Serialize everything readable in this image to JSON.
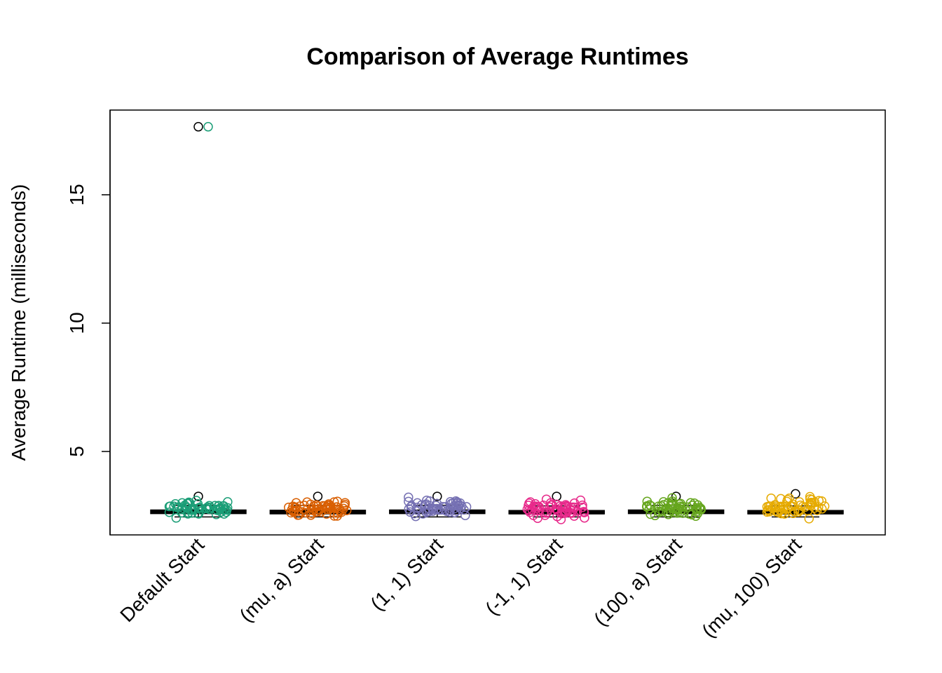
{
  "chart_data": {
    "type": "box",
    "title": "Comparison of Average Runtimes",
    "xlabel": "",
    "ylabel": "Average Runtime (milliseconds)",
    "ylim": [
      1.75,
      18.3
    ],
    "yticks": [
      5,
      10,
      15
    ],
    "grid": false,
    "categories": [
      "Default Start",
      "(mu, a) Start",
      "(1, 1) Start",
      "(-1, 1) Start",
      "(100, a) Start",
      "(mu, 100) Start"
    ],
    "colors": [
      "#1B9E77",
      "#D95F02",
      "#7570B3",
      "#E7298A",
      "#66A61E",
      "#E6AB02"
    ],
    "boxes": [
      {
        "min": 2.45,
        "q1": 2.58,
        "median": 2.64,
        "q3": 2.72,
        "max": 2.9,
        "outliers": [
          3.25,
          17.65
        ]
      },
      {
        "min": 2.45,
        "q1": 2.57,
        "median": 2.63,
        "q3": 2.71,
        "max": 2.9,
        "outliers": [
          3.25
        ]
      },
      {
        "min": 2.45,
        "q1": 2.58,
        "median": 2.64,
        "q3": 2.72,
        "max": 2.9,
        "outliers": [
          3.25
        ]
      },
      {
        "min": 2.45,
        "q1": 2.57,
        "median": 2.62,
        "q3": 2.7,
        "max": 2.88,
        "outliers": [
          3.25
        ]
      },
      {
        "min": 2.45,
        "q1": 2.58,
        "median": 2.64,
        "q3": 2.72,
        "max": 2.9,
        "outliers": [
          3.25
        ]
      },
      {
        "min": 2.45,
        "q1": 2.57,
        "median": 2.62,
        "q3": 2.7,
        "max": 2.88,
        "outliers": [
          3.35
        ]
      }
    ],
    "jitter_points": [
      {
        "category": "Default Start",
        "y_range": [
          2.3,
          3.25
        ],
        "count": 60,
        "extra": [
          17.65
        ]
      },
      {
        "category": "(mu, a) Start",
        "y_range": [
          2.35,
          3.2
        ],
        "count": 60,
        "extra": []
      },
      {
        "category": "(1, 1) Start",
        "y_range": [
          2.35,
          3.25
        ],
        "count": 60,
        "extra": []
      },
      {
        "category": "(-1, 1) Start",
        "y_range": [
          2.3,
          3.25
        ],
        "count": 60,
        "extra": []
      },
      {
        "category": "(100, a) Start",
        "y_range": [
          2.35,
          3.25
        ],
        "count": 60,
        "extra": []
      },
      {
        "category": "(mu, 100) Start",
        "y_range": [
          2.3,
          3.35
        ],
        "count": 60,
        "extra": []
      }
    ]
  }
}
